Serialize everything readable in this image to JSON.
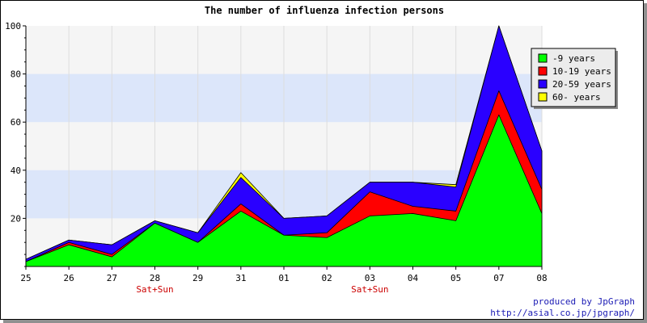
{
  "colors": {
    "plot_background": "#f5f5f5",
    "band": "#dce6fa",
    "grid": "#dddddd",
    "weekend_label": "#cc0000",
    "credit": "#1a1ab4"
  },
  "chart_data": {
    "type": "area",
    "stacked": true,
    "title": "The number of influenza infection persons",
    "xlabel": "",
    "ylabel": "",
    "ylim": [
      0,
      100
    ],
    "yticks": [
      20,
      40,
      60,
      80,
      100
    ],
    "grid": true,
    "legend_position": "top-right",
    "categories": [
      "25",
      "26",
      "27",
      "28",
      "29",
      "31",
      "01",
      "02",
      "03",
      "04",
      "05",
      "07",
      "08"
    ],
    "sublabels": [
      "",
      "",
      "",
      "Sat+Sun",
      "",
      "",
      "",
      "",
      "Sat+Sun",
      "",
      "",
      "",
      ""
    ],
    "series": [
      {
        "name": "-9 years",
        "color": "#00ff00",
        "values": [
          2,
          9,
          4,
          18,
          10,
          23,
          13,
          12,
          21,
          22,
          19,
          63,
          22
        ]
      },
      {
        "name": "10-19 years",
        "color": "#ff0000",
        "values": [
          0,
          1,
          1,
          0,
          0,
          3,
          0,
          2,
          10,
          3,
          4,
          10,
          10
        ]
      },
      {
        "name": "20-59 years",
        "color": "#2a00ff",
        "values": [
          1,
          1,
          4,
          1,
          4,
          11,
          7,
          7,
          4,
          10,
          10,
          27,
          16
        ]
      },
      {
        "name": "60- years",
        "color": "#ffff00",
        "values": [
          0,
          0,
          0,
          0,
          0,
          2,
          0,
          0,
          0,
          0,
          1,
          0,
          0
        ]
      }
    ]
  },
  "credits": {
    "line1": "produced by JpGraph",
    "line2": "http://asial.co.jp/jpgraph/"
  }
}
